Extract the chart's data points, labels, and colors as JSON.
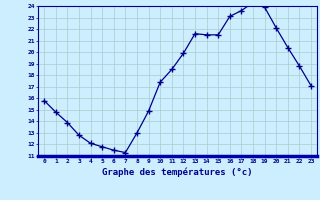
{
  "hours": [
    0,
    1,
    2,
    3,
    4,
    5,
    6,
    7,
    8,
    9,
    10,
    11,
    12,
    13,
    14,
    15,
    16,
    17,
    18,
    19,
    20,
    21,
    22,
    23
  ],
  "temps": [
    15.8,
    14.8,
    13.9,
    12.8,
    12.1,
    11.8,
    11.5,
    11.3,
    13.0,
    14.9,
    17.4,
    18.5,
    19.9,
    21.6,
    21.5,
    21.5,
    23.1,
    23.6,
    24.3,
    23.9,
    22.1,
    20.4,
    18.8,
    17.1
  ],
  "ylim": [
    11,
    24
  ],
  "yticks": [
    11,
    12,
    13,
    14,
    15,
    16,
    17,
    18,
    19,
    20,
    21,
    22,
    23,
    24
  ],
  "xtick_labels": [
    "0",
    "1",
    "2",
    "3",
    "4",
    "5",
    "6",
    "7",
    "8",
    "9",
    "10",
    "11",
    "12",
    "13",
    "14",
    "15",
    "16",
    "17",
    "18",
    "19",
    "20",
    "21",
    "22",
    "23"
  ],
  "xlabel": "Graphe des températures (°c)",
  "line_color": "#00008B",
  "marker": "+",
  "marker_size": 4,
  "bg_color": "#cceeff",
  "grid_color": "#aacccc",
  "axis_color": "#00008B",
  "label_color": "#00008B",
  "bottom_bar_color": "#0000aa"
}
